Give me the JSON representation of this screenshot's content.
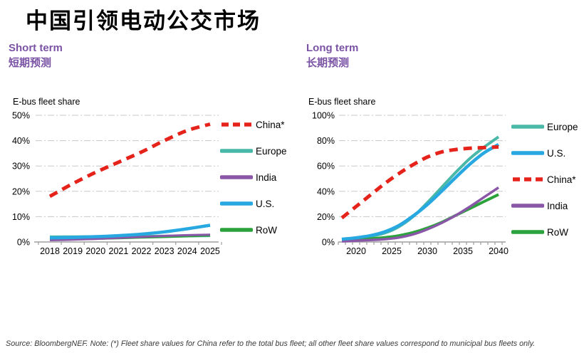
{
  "title": "中国引领电动公交市场",
  "panels": [
    {
      "heading_en": "Short term",
      "heading_zh": "短期预测"
    },
    {
      "heading_en": "Long term",
      "heading_zh": "长期预测"
    }
  ],
  "colors": {
    "heading_purple": "#7a53a5",
    "china_red": "#e5231b",
    "europe_teal": "#4ab8a8",
    "us_blue": "#27a8e0",
    "india_purple": "#8a57a8",
    "row_green": "#2ba23c",
    "axis_gray": "#9d9d9d",
    "grid_gray": "#c8c8c8"
  },
  "footer": "Source: BloombergNEF. Note: (*) Fleet share values for China refer to the total bus fleet; all other fleet share values correspond to municipal bus fleets only.",
  "chart_data": [
    {
      "type": "line",
      "title": "Short term 短期预测",
      "ylabel": "E-bus fleet share",
      "xlabel": "",
      "ylim": [
        0,
        50
      ],
      "y_ticks": [
        0,
        10,
        20,
        30,
        40,
        50
      ],
      "grid": true,
      "legend_position": "right",
      "x": [
        2018,
        2019,
        2020,
        2021,
        2022,
        2023,
        2024,
        2025
      ],
      "x_axis_labels": [
        2018,
        2019,
        2020,
        2021,
        2022,
        2023,
        2024,
        2025
      ],
      "series": [
        {
          "name": "Europe",
          "color": "#4ab8a8",
          "width": 4,
          "dash": false,
          "values": [
            2.0,
            2.05,
            2.1,
            2.15,
            2.2,
            2.3,
            2.4,
            2.5
          ]
        },
        {
          "name": "RoW",
          "color": "#2ba23c",
          "width": 4,
          "dash": false,
          "values": [
            1.1,
            1.2,
            1.4,
            1.6,
            1.9,
            2.1,
            2.4,
            2.7
          ]
        },
        {
          "name": "India",
          "color": "#8a57a8",
          "width": 3,
          "dash": false,
          "values": [
            0.7,
            0.9,
            1.2,
            1.6,
            2.0,
            2.4,
            2.7,
            2.9
          ]
        },
        {
          "name": "U.S.",
          "color": "#27a8e0",
          "width": 4.5,
          "dash": false,
          "values": [
            1.6,
            1.8,
            2.1,
            2.5,
            3.1,
            4.0,
            5.2,
            6.6
          ]
        },
        {
          "name": "China*",
          "color": "#e5231b",
          "width": 5,
          "dash": true,
          "values": [
            18,
            23,
            27.5,
            31.5,
            35.5,
            40,
            44,
            46.5
          ]
        }
      ],
      "legend_order": [
        "China*",
        "Europe",
        "India",
        "U.S.",
        "RoW"
      ]
    },
    {
      "type": "line",
      "title": "Long term 长期预测",
      "ylabel": "E-bus fleet share",
      "xlabel": "",
      "ylim": [
        0,
        100
      ],
      "y_ticks": [
        0,
        20,
        40,
        60,
        80,
        100
      ],
      "grid": true,
      "legend_position": "right",
      "x": [
        2018,
        2020,
        2022,
        2024,
        2026,
        2028,
        2030,
        2032,
        2034,
        2036,
        2038,
        2040
      ],
      "x_axis_labels": [
        2020,
        2025,
        2030,
        2035,
        2040
      ],
      "series": [
        {
          "name": "Europe",
          "color": "#4ab8a8",
          "width": 4,
          "dash": false,
          "values": [
            2,
            3,
            4.5,
            7,
            12,
            20,
            31,
            43,
            55,
            66,
            75,
            83
          ]
        },
        {
          "name": "RoW",
          "color": "#2ba23c",
          "width": 4,
          "dash": false,
          "values": [
            1.5,
            2,
            2.6,
            3.5,
            5,
            7.5,
            11,
            15.5,
            21,
            26.5,
            32,
            37.5
          ]
        },
        {
          "name": "India",
          "color": "#8a57a8",
          "width": 3.5,
          "dash": false,
          "values": [
            0.5,
            1,
            1.5,
            2.2,
            3.5,
            6,
            10,
            15,
            21,
            28,
            35.5,
            43
          ]
        },
        {
          "name": "U.S.",
          "color": "#27a8e0",
          "width": 4.5,
          "dash": false,
          "values": [
            2.2,
            3.3,
            5,
            8,
            13,
            20.5,
            29.5,
            40,
            51,
            61.5,
            70.5,
            77
          ]
        },
        {
          "name": "China*",
          "color": "#e5231b",
          "width": 5,
          "dash": true,
          "values": [
            19,
            28,
            37,
            46,
            54,
            61,
            67,
            71,
            73,
            74,
            74.5,
            75
          ]
        }
      ],
      "legend_order": [
        "Europe",
        "U.S.",
        "China*",
        "India",
        "RoW"
      ]
    }
  ]
}
